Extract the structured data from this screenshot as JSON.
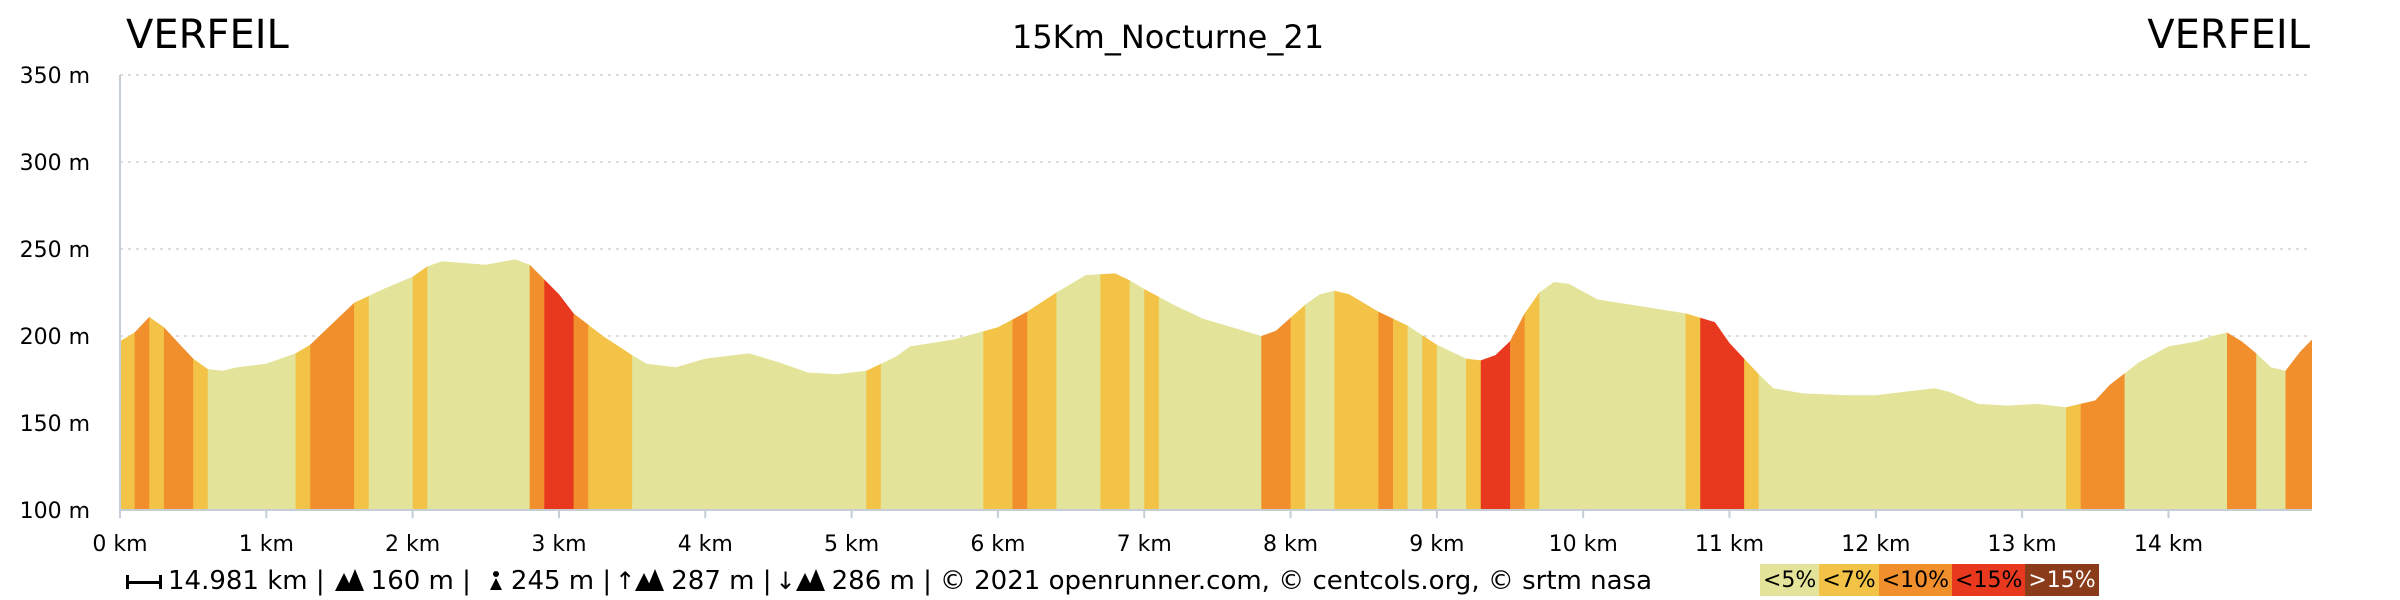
{
  "header": {
    "start_name": "VERFEIL",
    "route_title": "15Km_Nocturne_21",
    "end_name": "VERFEIL"
  },
  "colors": {
    "lt5": "#e3e49a",
    "lt7": "#f2c347",
    "lt10": "#f18f2d",
    "lt15": "#e8391f",
    "gt15": "#8a3b1a",
    "axis": "#c5ced6",
    "grid": "#dddddd"
  },
  "chart_data": {
    "type": "area",
    "title": "15Km_Nocturne_21",
    "xlabel": "",
    "ylabel": "",
    "xlim": [
      0,
      14.981
    ],
    "ylim": [
      100,
      350
    ],
    "grid": true,
    "yticks": [
      {
        "v": 100,
        "label": "100 m"
      },
      {
        "v": 150,
        "label": "150 m"
      },
      {
        "v": 200,
        "label": "200 m"
      },
      {
        "v": 250,
        "label": "250 m"
      },
      {
        "v": 300,
        "label": "300 m"
      },
      {
        "v": 350,
        "label": "350 m"
      }
    ],
    "xticks": [
      {
        "v": 0,
        "label": "0 km"
      },
      {
        "v": 1,
        "label": "1 km"
      },
      {
        "v": 2,
        "label": "2 km"
      },
      {
        "v": 3,
        "label": "3 km"
      },
      {
        "v": 4,
        "label": "4 km"
      },
      {
        "v": 5,
        "label": "5 km"
      },
      {
        "v": 6,
        "label": "6 km"
      },
      {
        "v": 7,
        "label": "7 km"
      },
      {
        "v": 8,
        "label": "8 km"
      },
      {
        "v": 9,
        "label": "9 km"
      },
      {
        "v": 10,
        "label": "10 km"
      },
      {
        "v": 11,
        "label": "11 km"
      },
      {
        "v": 12,
        "label": "12 km"
      },
      {
        "v": 13,
        "label": "13 km"
      },
      {
        "v": 14,
        "label": "14 km"
      }
    ],
    "elevation": [
      [
        0,
        197
      ],
      [
        0.1,
        202
      ],
      [
        0.2,
        211
      ],
      [
        0.3,
        205
      ],
      [
        0.4,
        196
      ],
      [
        0.5,
        187
      ],
      [
        0.6,
        181
      ],
      [
        0.7,
        180
      ],
      [
        0.8,
        182
      ],
      [
        1.0,
        184
      ],
      [
        1.2,
        190
      ],
      [
        1.3,
        195
      ],
      [
        1.4,
        203
      ],
      [
        1.6,
        219
      ],
      [
        1.8,
        227
      ],
      [
        2.0,
        234
      ],
      [
        2.1,
        240
      ],
      [
        2.2,
        243
      ],
      [
        2.5,
        241
      ],
      [
        2.7,
        244
      ],
      [
        2.8,
        241
      ],
      [
        3.0,
        224
      ],
      [
        3.1,
        213
      ],
      [
        3.3,
        200
      ],
      [
        3.5,
        189
      ],
      [
        3.6,
        184
      ],
      [
        3.8,
        182
      ],
      [
        4.0,
        187
      ],
      [
        4.3,
        190
      ],
      [
        4.5,
        185
      ],
      [
        4.7,
        179
      ],
      [
        4.9,
        178
      ],
      [
        5.1,
        180
      ],
      [
        5.3,
        188
      ],
      [
        5.4,
        194
      ],
      [
        5.7,
        198
      ],
      [
        6.0,
        205
      ],
      [
        6.2,
        214
      ],
      [
        6.4,
        225
      ],
      [
        6.6,
        235
      ],
      [
        6.8,
        236
      ],
      [
        6.9,
        232
      ],
      [
        7.0,
        227
      ],
      [
        7.2,
        218
      ],
      [
        7.4,
        210
      ],
      [
        7.6,
        205
      ],
      [
        7.8,
        200
      ],
      [
        7.9,
        203
      ],
      [
        8.1,
        218
      ],
      [
        8.2,
        224
      ],
      [
        8.3,
        226
      ],
      [
        8.4,
        224
      ],
      [
        8.6,
        214
      ],
      [
        8.8,
        206
      ],
      [
        9.0,
        195
      ],
      [
        9.2,
        187
      ],
      [
        9.3,
        186
      ],
      [
        9.4,
        189
      ],
      [
        9.5,
        197
      ],
      [
        9.6,
        213
      ],
      [
        9.7,
        225
      ],
      [
        9.8,
        231
      ],
      [
        9.9,
        230
      ],
      [
        10.1,
        221
      ],
      [
        10.4,
        217
      ],
      [
        10.7,
        213
      ],
      [
        10.9,
        208
      ],
      [
        11.0,
        196
      ],
      [
        11.2,
        178
      ],
      [
        11.3,
        170
      ],
      [
        11.5,
        167
      ],
      [
        11.8,
        166
      ],
      [
        12.0,
        166
      ],
      [
        12.2,
        168
      ],
      [
        12.4,
        170
      ],
      [
        12.5,
        168
      ],
      [
        12.7,
        161
      ],
      [
        12.9,
        160
      ],
      [
        13.1,
        161
      ],
      [
        13.3,
        159
      ],
      [
        13.5,
        163
      ],
      [
        13.6,
        172
      ],
      [
        13.8,
        185
      ],
      [
        14.0,
        194
      ],
      [
        14.2,
        197
      ],
      [
        14.3,
        200
      ],
      [
        14.4,
        202
      ],
      [
        14.5,
        197
      ],
      [
        14.6,
        190
      ],
      [
        14.7,
        182
      ],
      [
        14.8,
        180
      ],
      [
        14.9,
        191
      ],
      [
        14.981,
        198
      ]
    ],
    "gradient_segments": [
      {
        "from": 0,
        "to": 0.1,
        "cls": "lt7"
      },
      {
        "from": 0.1,
        "to": 0.2,
        "cls": "lt10"
      },
      {
        "from": 0.2,
        "to": 0.3,
        "cls": "lt7"
      },
      {
        "from": 0.3,
        "to": 0.5,
        "cls": "lt10"
      },
      {
        "from": 0.5,
        "to": 0.6,
        "cls": "lt7"
      },
      {
        "from": 0.6,
        "to": 1.2,
        "cls": "lt5"
      },
      {
        "from": 1.2,
        "to": 1.3,
        "cls": "lt7"
      },
      {
        "from": 1.3,
        "to": 1.6,
        "cls": "lt10"
      },
      {
        "from": 1.6,
        "to": 1.7,
        "cls": "lt7"
      },
      {
        "from": 1.7,
        "to": 2.0,
        "cls": "lt5"
      },
      {
        "from": 2.0,
        "to": 2.1,
        "cls": "lt7"
      },
      {
        "from": 2.1,
        "to": 2.8,
        "cls": "lt5"
      },
      {
        "from": 2.8,
        "to": 2.9,
        "cls": "lt10"
      },
      {
        "from": 2.9,
        "to": 3.1,
        "cls": "lt15"
      },
      {
        "from": 3.1,
        "to": 3.2,
        "cls": "lt10"
      },
      {
        "from": 3.2,
        "to": 3.5,
        "cls": "lt7"
      },
      {
        "from": 3.5,
        "to": 5.1,
        "cls": "lt5"
      },
      {
        "from": 5.1,
        "to": 5.2,
        "cls": "lt7"
      },
      {
        "from": 5.2,
        "to": 5.9,
        "cls": "lt5"
      },
      {
        "from": 5.9,
        "to": 6.1,
        "cls": "lt7"
      },
      {
        "from": 6.1,
        "to": 6.2,
        "cls": "lt10"
      },
      {
        "from": 6.2,
        "to": 6.4,
        "cls": "lt7"
      },
      {
        "from": 6.4,
        "to": 6.7,
        "cls": "lt5"
      },
      {
        "from": 6.7,
        "to": 6.9,
        "cls": "lt7"
      },
      {
        "from": 6.9,
        "to": 7.0,
        "cls": "lt5"
      },
      {
        "from": 7.0,
        "to": 7.1,
        "cls": "lt7"
      },
      {
        "from": 7.1,
        "to": 7.8,
        "cls": "lt5"
      },
      {
        "from": 7.8,
        "to": 8.0,
        "cls": "lt10"
      },
      {
        "from": 8.0,
        "to": 8.1,
        "cls": "lt7"
      },
      {
        "from": 8.1,
        "to": 8.3,
        "cls": "lt5"
      },
      {
        "from": 8.3,
        "to": 8.6,
        "cls": "lt7"
      },
      {
        "from": 8.6,
        "to": 8.7,
        "cls": "lt10"
      },
      {
        "from": 8.7,
        "to": 8.8,
        "cls": "lt7"
      },
      {
        "from": 8.8,
        "to": 8.9,
        "cls": "lt5"
      },
      {
        "from": 8.9,
        "to": 9.0,
        "cls": "lt7"
      },
      {
        "from": 9.0,
        "to": 9.2,
        "cls": "lt5"
      },
      {
        "from": 9.2,
        "to": 9.3,
        "cls": "lt7"
      },
      {
        "from": 9.3,
        "to": 9.5,
        "cls": "lt15"
      },
      {
        "from": 9.5,
        "to": 9.6,
        "cls": "lt10"
      },
      {
        "from": 9.6,
        "to": 9.7,
        "cls": "lt7"
      },
      {
        "from": 9.7,
        "to": 10.7,
        "cls": "lt5"
      },
      {
        "from": 10.7,
        "to": 10.8,
        "cls": "lt7"
      },
      {
        "from": 10.8,
        "to": 11.1,
        "cls": "lt15"
      },
      {
        "from": 11.1,
        "to": 11.2,
        "cls": "lt7"
      },
      {
        "from": 11.2,
        "to": 13.3,
        "cls": "lt5"
      },
      {
        "from": 13.3,
        "to": 13.4,
        "cls": "lt7"
      },
      {
        "from": 13.4,
        "to": 13.7,
        "cls": "lt10"
      },
      {
        "from": 13.7,
        "to": 14.4,
        "cls": "lt5"
      },
      {
        "from": 14.4,
        "to": 14.6,
        "cls": "lt10"
      },
      {
        "from": 14.6,
        "to": 14.8,
        "cls": "lt5"
      },
      {
        "from": 14.8,
        "to": 14.981,
        "cls": "lt10"
      }
    ]
  },
  "footer": {
    "distance": "14.981 km |",
    "min_elevation": "160 m |",
    "max_elevation": "245 m |",
    "ascent": "287 m |",
    "descent": "286 m |",
    "credits": "© 2021 openrunner.com, © centcols.org, © srtm nasa"
  },
  "legend": [
    {
      "label": "<5%",
      "cls": "lt5"
    },
    {
      "label": "<7%",
      "cls": "lt7"
    },
    {
      "label": "<10%",
      "cls": "lt10"
    },
    {
      "label": "<15%",
      "cls": "lt15"
    },
    {
      "label": ">15%",
      "cls": "gt15"
    }
  ]
}
